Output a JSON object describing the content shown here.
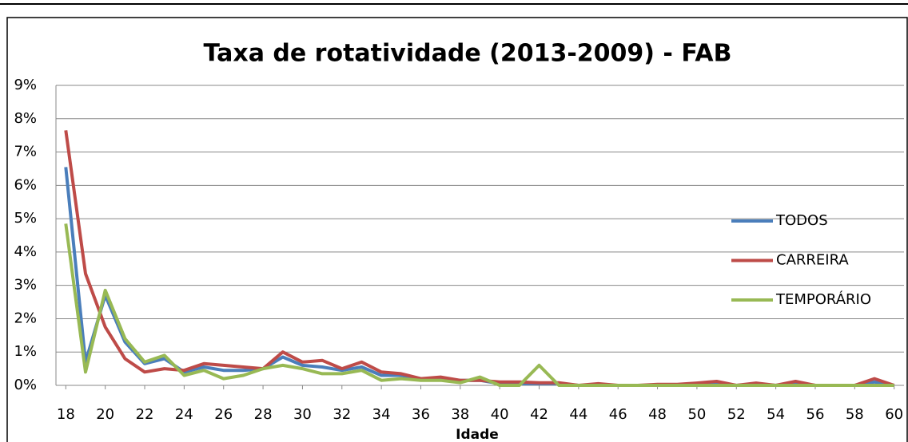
{
  "chart_data": {
    "type": "line",
    "title": "Taxa de rotatividade (2013-2009) - FAB",
    "xlabel": "Idade",
    "x": [
      18,
      19,
      20,
      21,
      22,
      23,
      24,
      25,
      26,
      27,
      28,
      29,
      30,
      31,
      32,
      33,
      34,
      35,
      36,
      37,
      38,
      39,
      40,
      41,
      42,
      43,
      44,
      45,
      46,
      47,
      48,
      49,
      50,
      51,
      52,
      53,
      54,
      55,
      56,
      57,
      58,
      59,
      60
    ],
    "series": [
      {
        "name": "TODOS",
        "color": "#4a7ebb",
        "values": [
          6.55,
          0.7,
          2.7,
          1.3,
          0.65,
          0.8,
          0.4,
          0.55,
          0.45,
          0.45,
          0.5,
          0.85,
          0.6,
          0.55,
          0.45,
          0.55,
          0.3,
          0.3,
          0.2,
          0.2,
          0.15,
          0.15,
          0.05,
          0.05,
          0.05,
          0.05,
          0,
          0,
          0,
          0,
          0,
          0,
          0.05,
          0.05,
          0,
          0.03,
          0,
          0.05,
          0,
          0,
          0,
          0.1,
          0
        ]
      },
      {
        "name": "CARREIRA",
        "color": "#be4b48",
        "values": [
          7.65,
          3.35,
          1.75,
          0.8,
          0.4,
          0.5,
          0.45,
          0.65,
          0.6,
          0.55,
          0.5,
          1.0,
          0.7,
          0.75,
          0.5,
          0.7,
          0.4,
          0.35,
          0.2,
          0.25,
          0.15,
          0.15,
          0.1,
          0.1,
          0.08,
          0.08,
          0,
          0.05,
          0,
          0,
          0.03,
          0.03,
          0.07,
          0.12,
          0,
          0.07,
          0,
          0.12,
          0,
          0,
          0,
          0.2,
          0
        ]
      },
      {
        "name": "TEMPORÁRIO",
        "color": "#98b954",
        "values": [
          4.85,
          0.4,
          2.85,
          1.4,
          0.7,
          0.9,
          0.3,
          0.45,
          0.2,
          0.3,
          0.5,
          0.6,
          0.5,
          0.35,
          0.35,
          0.45,
          0.15,
          0.2,
          0.15,
          0.15,
          0.08,
          0.25,
          0,
          0,
          0.6,
          0,
          0,
          0,
          0,
          0,
          0,
          0,
          0,
          0,
          0,
          0,
          0,
          0,
          0,
          0,
          0,
          0,
          0
        ]
      }
    ],
    "xlim": [
      17.5,
      60.5
    ],
    "xticks": [
      18,
      20,
      22,
      24,
      26,
      28,
      30,
      32,
      34,
      36,
      38,
      40,
      42,
      44,
      46,
      48,
      50,
      52,
      54,
      56,
      58,
      60
    ],
    "ylim": [
      0,
      9
    ],
    "yticks": [
      {
        "value": 0,
        "label": "0%"
      },
      {
        "value": 1,
        "label": "1%"
      },
      {
        "value": 2,
        "label": "2%"
      },
      {
        "value": 3,
        "label": "3%"
      },
      {
        "value": 4,
        "label": "4%"
      },
      {
        "value": 5,
        "label": "5%"
      },
      {
        "value": 6,
        "label": "6%"
      },
      {
        "value": 7,
        "label": "7%"
      },
      {
        "value": 8,
        "label": "8%"
      },
      {
        "value": 9,
        "label": "9%"
      }
    ],
    "grid": true,
    "legend": "right"
  }
}
